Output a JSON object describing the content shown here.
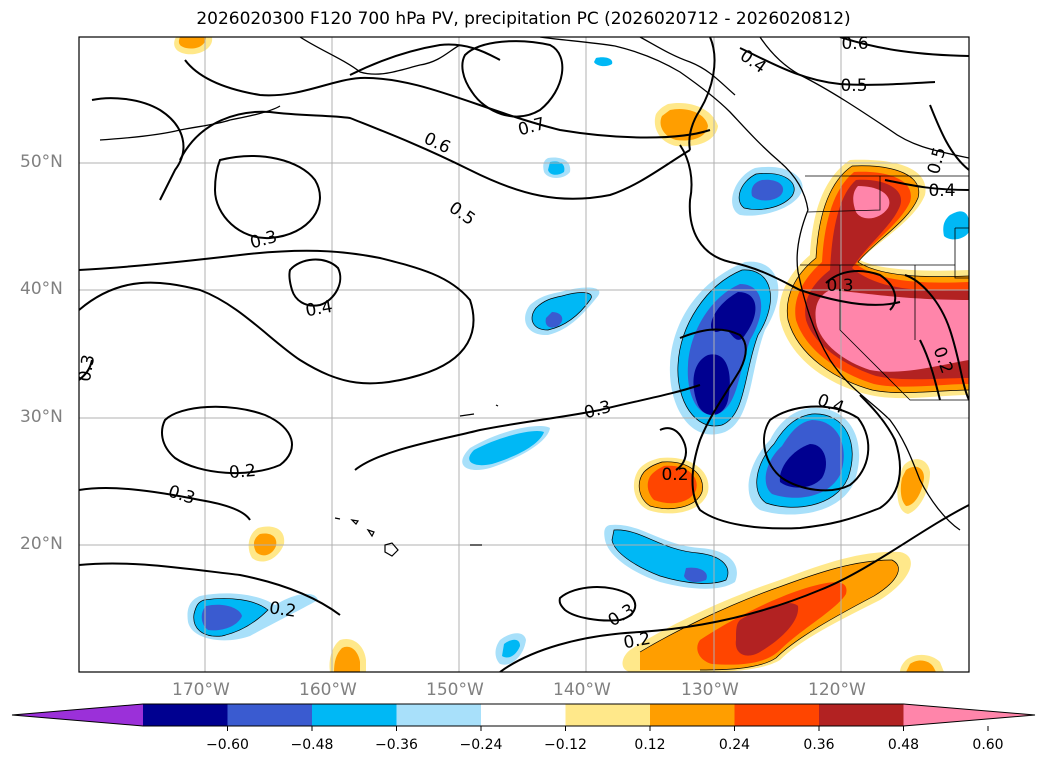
{
  "title": "2026020300 F120 700 hPa PV, precipitation PC (2026020712 - 2026020812)",
  "lat_labels": [
    "50°N",
    "40°N",
    "30°N",
    "20°N"
  ],
  "lon_labels": [
    "170°W",
    "160°W",
    "150°W",
    "140°W",
    "130°W",
    "120°W"
  ],
  "contour_labels": [
    "0.6",
    "0.4",
    "0.5",
    "0.7",
    "0.6",
    "0.5",
    "0.3",
    "0.5",
    "0.4",
    "0.4",
    "0.3",
    "0.3",
    "0.3",
    "0.2",
    "0.4",
    "0.2",
    "0.3",
    "0.2",
    "0.2",
    "0.3",
    "0.2"
  ],
  "colorbar": {
    "ticks": [
      "−0.60",
      "−0.48",
      "−0.36",
      "−0.24",
      "−0.12",
      "0.12",
      "0.24",
      "0.36",
      "0.48",
      "0.60"
    ],
    "colors": [
      "#9b30d9",
      "#000090",
      "#3a5bd0",
      "#00b8f5",
      "#a8e0fa",
      "#ffffff",
      "#ffe88a",
      "#ff9e00",
      "#ff4500",
      "#b22222",
      "#ff85aa"
    ]
  }
}
